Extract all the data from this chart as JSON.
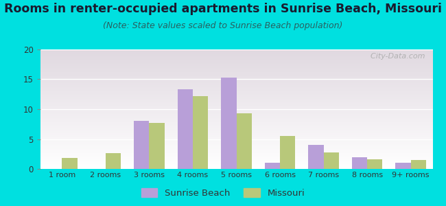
{
  "title": "Rooms in renter-occupied apartments in Sunrise Beach, Missouri",
  "subtitle": "(Note: State values scaled to Sunrise Beach population)",
  "categories": [
    "1 room",
    "2 rooms",
    "3 rooms",
    "4 rooms",
    "5 rooms",
    "6 rooms",
    "7 rooms",
    "8 rooms",
    "9+ rooms"
  ],
  "sunrise_beach": [
    0,
    0,
    8,
    13.3,
    15.3,
    1,
    4,
    2,
    1
  ],
  "missouri": [
    1.8,
    2.6,
    7.7,
    12.2,
    9.3,
    5.5,
    2.8,
    1.6,
    1.5
  ],
  "sunrise_beach_color": "#b89fd8",
  "missouri_color": "#b8c87a",
  "ylim": [
    0,
    20
  ],
  "yticks": [
    0,
    5,
    10,
    15,
    20
  ],
  "background_outer": "#00e0e0",
  "bar_width": 0.35,
  "title_fontsize": 12.5,
  "subtitle_fontsize": 9,
  "legend_sunrise_label": "Sunrise Beach",
  "legend_missouri_label": "Missouri",
  "watermark": "  City-Data.com"
}
